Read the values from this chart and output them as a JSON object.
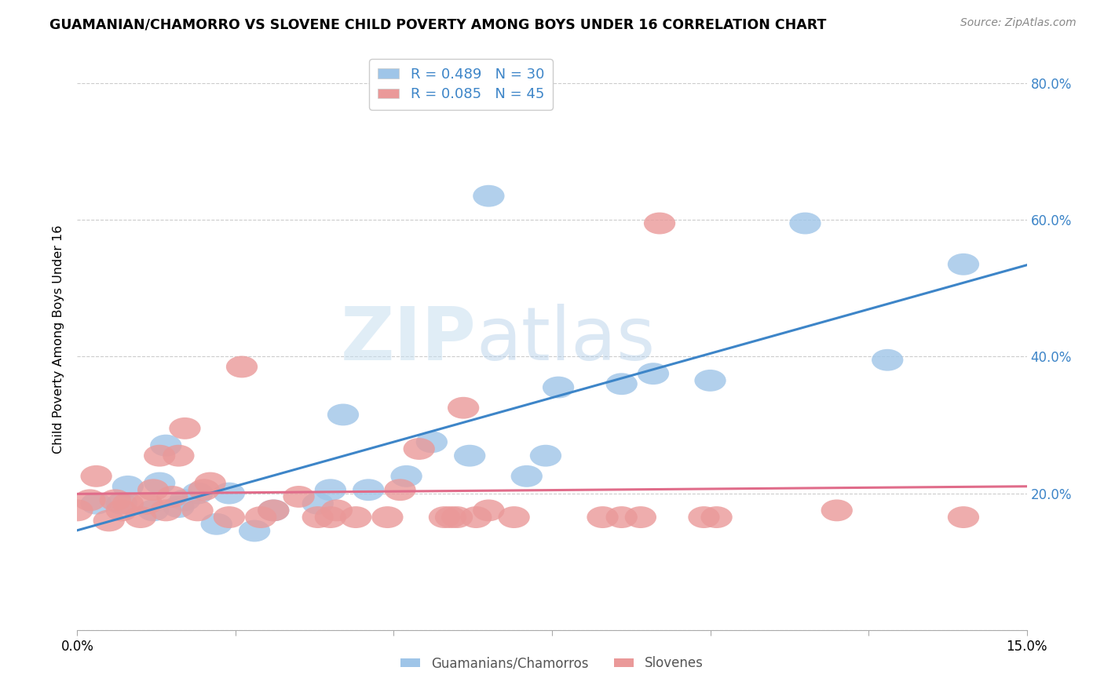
{
  "title": "GUAMANIAN/CHAMORRO VS SLOVENE CHILD POVERTY AMONG BOYS UNDER 16 CORRELATION CHART",
  "source": "Source: ZipAtlas.com",
  "ylabel": "Child Poverty Among Boys Under 16",
  "xlim": [
    0.0,
    0.15
  ],
  "ylim": [
    0.0,
    0.85
  ],
  "blue_R": 0.489,
  "blue_N": 30,
  "pink_R": 0.085,
  "pink_N": 45,
  "blue_color": "#9fc5e8",
  "pink_color": "#ea9999",
  "blue_line_color": "#3d85c8",
  "pink_line_color": "#e06c8a",
  "legend_label_blue": "Guamanians/Chamorros",
  "legend_label_pink": "Slovenes",
  "watermark_zip": "ZIP",
  "watermark_atlas": "atlas",
  "y_ticks": [
    0.0,
    0.2,
    0.4,
    0.6,
    0.8
  ],
  "y_tick_labels": [
    "",
    "20.0%",
    "40.0%",
    "60.0%",
    "80.0%"
  ],
  "blue_x": [
    0.003,
    0.007,
    0.008,
    0.012,
    0.013,
    0.014,
    0.016,
    0.017,
    0.019,
    0.022,
    0.024,
    0.028,
    0.031,
    0.038,
    0.04,
    0.042,
    0.046,
    0.052,
    0.056,
    0.062,
    0.065,
    0.071,
    0.074,
    0.076,
    0.086,
    0.091,
    0.1,
    0.115,
    0.128,
    0.14
  ],
  "blue_y": [
    0.185,
    0.185,
    0.21,
    0.175,
    0.215,
    0.27,
    0.18,
    0.19,
    0.2,
    0.155,
    0.2,
    0.145,
    0.175,
    0.185,
    0.205,
    0.315,
    0.205,
    0.225,
    0.275,
    0.255,
    0.635,
    0.225,
    0.255,
    0.355,
    0.36,
    0.375,
    0.365,
    0.595,
    0.395,
    0.535
  ],
  "pink_x": [
    0.0,
    0.002,
    0.003,
    0.005,
    0.006,
    0.007,
    0.008,
    0.01,
    0.011,
    0.012,
    0.013,
    0.014,
    0.015,
    0.016,
    0.017,
    0.019,
    0.02,
    0.021,
    0.024,
    0.026,
    0.029,
    0.031,
    0.035,
    0.038,
    0.04,
    0.041,
    0.044,
    0.049,
    0.051,
    0.054,
    0.058,
    0.059,
    0.06,
    0.061,
    0.063,
    0.065,
    0.069,
    0.083,
    0.086,
    0.089,
    0.092,
    0.099,
    0.101,
    0.12,
    0.14
  ],
  "pink_y": [
    0.175,
    0.19,
    0.225,
    0.16,
    0.19,
    0.175,
    0.185,
    0.165,
    0.185,
    0.205,
    0.255,
    0.175,
    0.195,
    0.255,
    0.295,
    0.175,
    0.205,
    0.215,
    0.165,
    0.385,
    0.165,
    0.175,
    0.195,
    0.165,
    0.165,
    0.175,
    0.165,
    0.165,
    0.205,
    0.265,
    0.165,
    0.165,
    0.165,
    0.325,
    0.165,
    0.175,
    0.165,
    0.165,
    0.165,
    0.165,
    0.595,
    0.165,
    0.165,
    0.175,
    0.165
  ]
}
